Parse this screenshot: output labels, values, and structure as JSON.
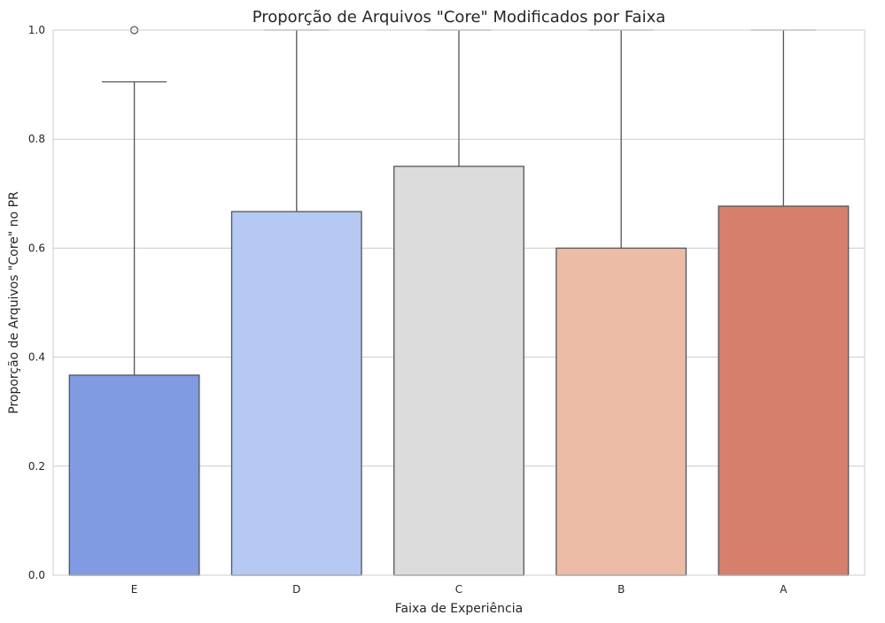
{
  "chart_data": {
    "type": "box",
    "title": "Proporção de Arquivos \"Core\" Modificados por Faixa",
    "xlabel": "Faixa de Experiência",
    "ylabel": "Proporção de Arquivos \"Core\" no PR",
    "ylim": [
      0,
      1
    ],
    "yticks": [
      "0.0",
      "0.2",
      "0.4",
      "0.6",
      "0.8",
      "1.0"
    ],
    "grid": true,
    "categories": [
      "E",
      "D",
      "C",
      "B",
      "A"
    ],
    "colors": [
      "#819BE2",
      "#B5C9F3",
      "#DCDCDC",
      "#ECBCA6",
      "#D67F6D"
    ],
    "boxes": [
      {
        "category": "E",
        "q1": 0.0,
        "median": 0.0,
        "q3": 0.367,
        "whisker_low": 0.0,
        "whisker_high": 0.905,
        "outliers": [
          1.0
        ]
      },
      {
        "category": "D",
        "q1": 0.0,
        "median": 0.0,
        "q3": 0.667,
        "whisker_low": 0.0,
        "whisker_high": 1.0,
        "outliers": []
      },
      {
        "category": "C",
        "q1": 0.0,
        "median": 0.0,
        "q3": 0.75,
        "whisker_low": 0.0,
        "whisker_high": 1.0,
        "outliers": []
      },
      {
        "category": "B",
        "q1": 0.0,
        "median": 0.0,
        "q3": 0.6,
        "whisker_low": 0.0,
        "whisker_high": 1.0,
        "outliers": []
      },
      {
        "category": "A",
        "q1": 0.0,
        "median": 0.0,
        "q3": 0.677,
        "whisker_low": 0.0,
        "whisker_high": 1.0,
        "outliers": []
      }
    ]
  }
}
